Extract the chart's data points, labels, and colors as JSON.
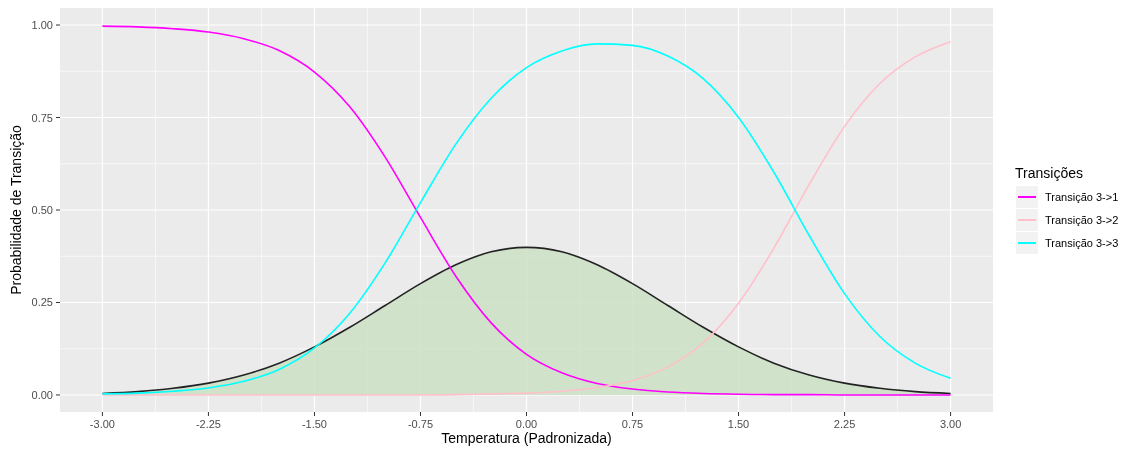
{
  "chart_data": {
    "type": "line",
    "xlabel": "Temperatura (Padronizada)",
    "ylabel": "Probabilidade de Transição",
    "legend_title": "Transições",
    "legend": "right",
    "grid": true,
    "x": [
      -3,
      -2.75,
      -2.5,
      -2.25,
      -2,
      -1.75,
      -1.5,
      -1.25,
      -1,
      -0.75,
      -0.5,
      -0.25,
      0,
      0.25,
      0.5,
      0.75,
      1,
      1.25,
      1.5,
      1.75,
      2,
      2.25,
      2.5,
      2.75,
      3
    ],
    "xlim": [
      -3.3,
      3.3
    ],
    "xticks": [
      {
        "value": -3,
        "label": "-3.00"
      },
      {
        "value": -2.25,
        "label": "-2.25"
      },
      {
        "value": -1.5,
        "label": "-1.50"
      },
      {
        "value": -0.75,
        "label": "-0.75"
      },
      {
        "value": 0,
        "label": "0.00"
      },
      {
        "value": 0.75,
        "label": "0.75"
      },
      {
        "value": 1.5,
        "label": "1.50"
      },
      {
        "value": 2.25,
        "label": "2.25"
      },
      {
        "value": 3,
        "label": "3.00"
      }
    ],
    "ylim": [
      -0.046,
      1.046
    ],
    "yticks": [
      {
        "value": 0,
        "label": "0.00"
      },
      {
        "value": 0.25,
        "label": "0.25"
      },
      {
        "value": 0.5,
        "label": "0.50"
      },
      {
        "value": 0.75,
        "label": "0.75"
      },
      {
        "value": 1,
        "label": "1.00"
      }
    ],
    "series": [
      {
        "name": "Transição 3->1",
        "color": "#ff00ff",
        "values": [
          0.997,
          0.995,
          0.99,
          0.981,
          0.963,
          0.931,
          0.873,
          0.779,
          0.643,
          0.48,
          0.321,
          0.195,
          0.11,
          0.06,
          0.031,
          0.016,
          0.008,
          0.004,
          0.002,
          0.001,
          0.001,
          0,
          0,
          0,
          0
        ]
      },
      {
        "name": "Transição 3->2",
        "color": "#ffc0cb",
        "values": [
          0,
          0,
          0,
          0,
          0,
          0,
          0,
          0,
          0,
          0,
          0.001,
          0.003,
          0.005,
          0.01,
          0.02,
          0.039,
          0.076,
          0.141,
          0.248,
          0.397,
          0.569,
          0.726,
          0.842,
          0.914,
          0.955
        ]
      },
      {
        "name": "Transição 3->3",
        "color": "#00ffff",
        "values": [
          0.003,
          0.005,
          0.01,
          0.019,
          0.037,
          0.069,
          0.127,
          0.221,
          0.357,
          0.52,
          0.678,
          0.802,
          0.885,
          0.93,
          0.949,
          0.945,
          0.916,
          0.855,
          0.75,
          0.602,
          0.431,
          0.274,
          0.158,
          0.086,
          0.045
        ]
      },
      {
        "type": "area",
        "color": "#cde0c5",
        "values": [
          0.004,
          0.009,
          0.018,
          0.032,
          0.054,
          0.086,
          0.13,
          0.183,
          0.242,
          0.301,
          0.352,
          0.387,
          0.399,
          0.387,
          0.352,
          0.301,
          0.242,
          0.183,
          0.13,
          0.086,
          0.054,
          0.032,
          0.018,
          0.009,
          0.004
        ]
      }
    ]
  }
}
